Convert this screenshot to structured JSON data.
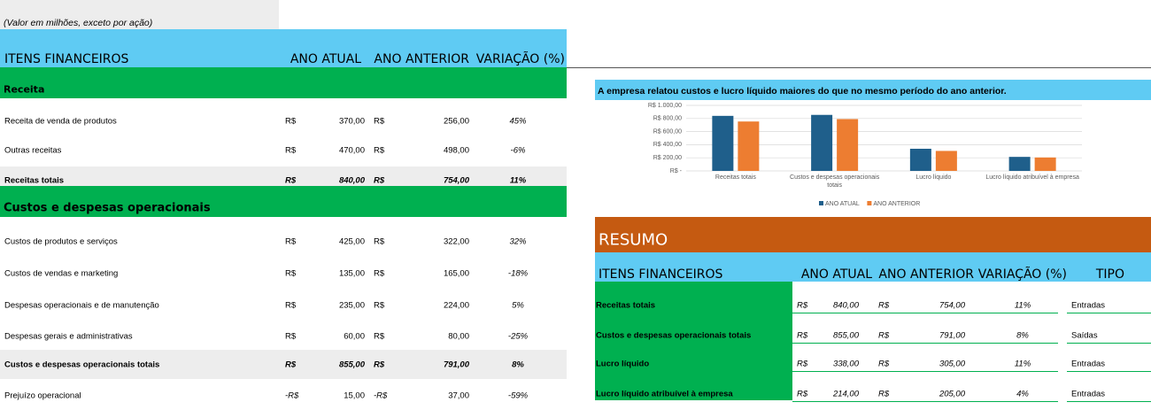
{
  "note": "(Valor em milhões, exceto por ação)",
  "left_table": {
    "header": [
      "ITENS FINANCEIROS",
      "ANO ATUAL",
      "ANO ANTERIOR",
      "VARIAÇÃO (%)"
    ],
    "sections": [
      {
        "title": "Receita",
        "rows": [
          [
            "Receita de venda de produtos",
            "R$",
            "370,00",
            "R$",
            "256,00",
            "45%"
          ],
          [
            "Outras receitas",
            "R$",
            "470,00",
            "R$",
            "498,00",
            "-6%"
          ]
        ],
        "total": [
          "Receitas totais",
          "R$",
          "840,00",
          "R$",
          "754,00",
          "11%"
        ]
      },
      {
        "title": "Custos e despesas operacionais",
        "rows": [
          [
            "Custos de produtos e serviços",
            "R$",
            "425,00",
            "R$",
            "322,00",
            "32%"
          ],
          [
            "Custos de vendas e marketing",
            "R$",
            "135,00",
            "R$",
            "165,00",
            "-18%"
          ],
          [
            "Despesas operacionais e de manutenção",
            "R$",
            "235,00",
            "R$",
            "224,00",
            "5%"
          ],
          [
            "Despesas gerais e administrativas",
            "R$",
            "60,00",
            "R$",
            "80,00",
            "-25%"
          ]
        ],
        "total": [
          "Custos e despesas operacionais totais",
          "R$",
          "855,00",
          "R$",
          "791,00",
          "8%"
        ]
      }
    ],
    "extra_rows": [
      [
        "Prejuízo operacional",
        "-R$",
        "15,00",
        "-R$",
        "37,00",
        "-59%"
      ]
    ]
  },
  "chart_data": {
    "type": "bar",
    "title": "A empresa relatou custos e lucro líquido maiores do que no mesmo período do ano anterior.",
    "categories": [
      "Receitas totais",
      "Custos e despesas operacionais totais",
      "Lucro líquido",
      "Lucro líquido atribuível à empresa"
    ],
    "series": [
      {
        "name": "ANO ATUAL",
        "color": "#1f5f8b",
        "values": [
          840,
          855,
          338,
          214
        ]
      },
      {
        "name": "ANO ANTERIOR",
        "color": "#ed7d31",
        "values": [
          754,
          791,
          305,
          205
        ]
      }
    ],
    "ylim": [
      0,
      1000
    ],
    "yticks": [
      {
        "value": 0,
        "label": "R$ -"
      },
      {
        "value": 200,
        "label": "R$ 200,00"
      },
      {
        "value": 400,
        "label": "R$ 400,00"
      },
      {
        "value": 600,
        "label": "R$ 600,00"
      },
      {
        "value": 800,
        "label": "R$ 800,00"
      },
      {
        "value": 1000,
        "label": "R$ 1.000,00"
      }
    ],
    "grid": true,
    "legend": "bottom"
  },
  "summary": {
    "title": "RESUMO",
    "header": [
      "ITENS FINANCEIROS",
      "ANO ATUAL",
      "ANO ANTERIOR",
      "VARIAÇÃO (%)",
      "TIPO"
    ],
    "rows": [
      [
        "Receitas totais",
        "R$",
        "840,00",
        "R$",
        "754,00",
        "11%",
        "Entradas"
      ],
      [
        "Custos e despesas operacionais totais",
        "R$",
        "855,00",
        "R$",
        "791,00",
        "8%",
        "Saídas"
      ],
      [
        "Lucro líquido",
        "R$",
        "338,00",
        "R$",
        "305,00",
        "11%",
        "Entradas"
      ],
      [
        "Lucro líquido atribuível à empresa",
        "R$",
        "214,00",
        "R$",
        "205,00",
        "4%",
        "Entradas"
      ]
    ]
  }
}
